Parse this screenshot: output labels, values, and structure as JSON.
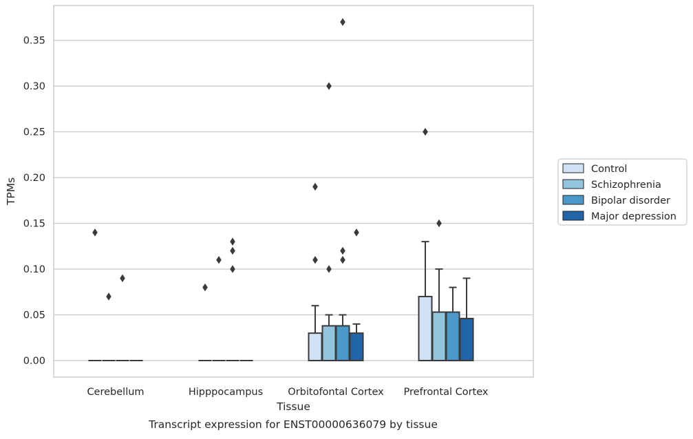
{
  "chart_data": {
    "type": "boxplot",
    "title": "Transcript expression for ENST00000636079 by tissue",
    "xlabel": "Tissue",
    "ylabel": "TPMs",
    "ylim": [
      -0.018,
      0.388
    ],
    "yticks": [
      0.0,
      0.05,
      0.1,
      0.15,
      0.2,
      0.25,
      0.3,
      0.35
    ],
    "ytick_labels": [
      "0.00",
      "0.05",
      "0.10",
      "0.15",
      "0.20",
      "0.25",
      "0.30",
      "0.35"
    ],
    "grid": "horizontal",
    "legend_position": "right",
    "categories": [
      "Cerebellum",
      "Hipppocampus",
      "Orbitofontal Cortex",
      "Prefrontal Cortex"
    ],
    "series": [
      {
        "name": "Control",
        "color": "#cfe1f2",
        "boxes": [
          {
            "whisker_low": 0,
            "q1": 0,
            "median": 0,
            "q3": 0,
            "whisker_high": 0,
            "outliers": [
              0.14
            ]
          },
          {
            "whisker_low": 0,
            "q1": 0,
            "median": 0,
            "q3": 0,
            "whisker_high": 0,
            "outliers": [
              0.08
            ]
          },
          {
            "whisker_low": 0,
            "q1": 0,
            "median": 0,
            "q3": 0.03,
            "whisker_high": 0.06,
            "outliers": [
              0.11,
              0.19
            ]
          },
          {
            "whisker_low": 0,
            "q1": 0,
            "median": 0,
            "q3": 0.07,
            "whisker_high": 0.13,
            "outliers": [
              0.25
            ]
          }
        ]
      },
      {
        "name": "Schizophrenia",
        "color": "#93c4de",
        "boxes": [
          {
            "whisker_low": 0,
            "q1": 0,
            "median": 0,
            "q3": 0,
            "whisker_high": 0,
            "outliers": [
              0.07
            ]
          },
          {
            "whisker_low": 0,
            "q1": 0,
            "median": 0,
            "q3": 0,
            "whisker_high": 0,
            "outliers": [
              0.11
            ]
          },
          {
            "whisker_low": 0,
            "q1": 0,
            "median": 0,
            "q3": 0.038,
            "whisker_high": 0.05,
            "outliers": [
              0.1,
              0.3
            ]
          },
          {
            "whisker_low": 0,
            "q1": 0,
            "median": 0,
            "q3": 0.053,
            "whisker_high": 0.1,
            "outliers": [
              0.15
            ]
          }
        ]
      },
      {
        "name": "Bipolar disorder",
        "color": "#4a98c9",
        "boxes": [
          {
            "whisker_low": 0,
            "q1": 0,
            "median": 0,
            "q3": 0,
            "whisker_high": 0,
            "outliers": [
              0.09
            ]
          },
          {
            "whisker_low": 0,
            "q1": 0,
            "median": 0,
            "q3": 0,
            "whisker_high": 0,
            "outliers": [
              0.1,
              0.12,
              0.13
            ]
          },
          {
            "whisker_low": 0,
            "q1": 0,
            "median": 0,
            "q3": 0.038,
            "whisker_high": 0.05,
            "outliers": [
              0.11,
              0.12,
              0.37
            ]
          },
          {
            "whisker_low": 0,
            "q1": 0,
            "median": 0,
            "q3": 0.053,
            "whisker_high": 0.08,
            "outliers": []
          }
        ]
      },
      {
        "name": "Major depression",
        "color": "#2264a8",
        "boxes": [
          {
            "whisker_low": 0,
            "q1": 0,
            "median": 0,
            "q3": 0,
            "whisker_high": 0,
            "outliers": []
          },
          {
            "whisker_low": 0,
            "q1": 0,
            "median": 0,
            "q3": 0,
            "whisker_high": 0,
            "outliers": []
          },
          {
            "whisker_low": 0,
            "q1": 0,
            "median": 0,
            "q3": 0.03,
            "whisker_high": 0.04,
            "outliers": [
              0.14
            ]
          },
          {
            "whisker_low": 0,
            "q1": 0,
            "median": 0,
            "q3": 0.046,
            "whisker_high": 0.09,
            "outliers": []
          }
        ]
      }
    ],
    "style": {
      "edge_color": "#3a3a3a",
      "grid_color": "#cccccc",
      "frame_color": "#cccccc",
      "background": "#ffffff"
    }
  }
}
